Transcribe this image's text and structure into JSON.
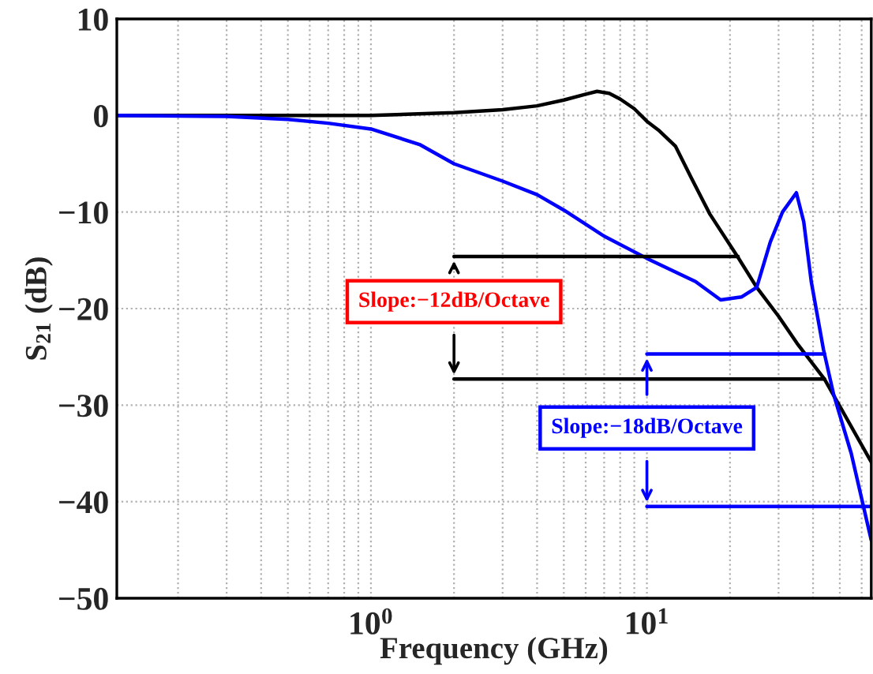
{
  "chart_data": {
    "type": "line",
    "xlabel": "Frequency (GHz)",
    "ylabel": "S$_{21}$ (dB)",
    "log": "x",
    "xlim": [
      0.12,
      65
    ],
    "xticks": [
      {
        "value": 1,
        "label": "10$^{0}$"
      },
      {
        "value": 10,
        "label": "10$^{1}$"
      }
    ],
    "ylim": [
      -50,
      10
    ],
    "yticks": [
      {
        "value": -50,
        "label": "−50"
      },
      {
        "value": -40,
        "label": "−40"
      },
      {
        "value": -30,
        "label": "−30"
      },
      {
        "value": -20,
        "label": "−20"
      },
      {
        "value": -10,
        "label": "−10"
      },
      0,
      10
    ],
    "grid": true,
    "line_style": "solid",
    "marker": "none",
    "series": [
      {
        "color": "#000000",
        "x": [
          0.12,
          1,
          2,
          3,
          4,
          5,
          6,
          6.6,
          7.3,
          8,
          9,
          10,
          11,
          12.7,
          14.5,
          16.9,
          21.4,
          25,
          30,
          35,
          44,
          65
        ],
        "values": [
          0,
          0,
          0.3,
          0.6,
          1.0,
          1.6,
          2.2,
          2.5,
          2.3,
          1.7,
          0.7,
          -0.6,
          -1.5,
          -3.2,
          -6.5,
          -10.2,
          -14.7,
          -17.8,
          -20.8,
          -23.6,
          -27.3,
          -35.9
        ]
      },
      {
        "color": "#0000ff",
        "x": [
          0.12,
          0.3,
          0.5,
          0.7,
          1,
          1.5,
          2,
          3,
          4,
          5,
          7,
          10,
          15,
          18.5,
          22,
          25,
          28,
          31,
          34.8,
          37,
          39.4,
          43.6,
          47.5,
          55,
          65
        ],
        "values": [
          0,
          -0.1,
          -0.4,
          -0.8,
          -1.4,
          -3.0,
          -5.0,
          -6.8,
          -8.2,
          -9.8,
          -12.5,
          -14.8,
          -17.2,
          -19.1,
          -18.8,
          -17.8,
          -13.1,
          -10.0,
          -8.0,
          -11.0,
          -17.2,
          -24.2,
          -28.9,
          -35.0,
          -44.0
        ]
      },
      {
        "color": "#000000",
        "x": [
          2,
          21.4
        ],
        "values": [
          -14.6,
          -14.6
        ]
      },
      {
        "color": "#000000",
        "x": [
          2,
          44
        ],
        "values": [
          -27.3,
          -27.3
        ]
      },
      {
        "color": "#0000ff",
        "x": [
          10,
          44
        ],
        "values": [
          -24.7,
          -24.7
        ]
      },
      {
        "color": "#0000ff",
        "x": [
          10,
          65
        ],
        "values": [
          -40.5,
          -40.5
        ]
      }
    ],
    "annotations": [
      "Slope:−12dB/Octave",
      "Slope:−18dB/Octave"
    ]
  }
}
